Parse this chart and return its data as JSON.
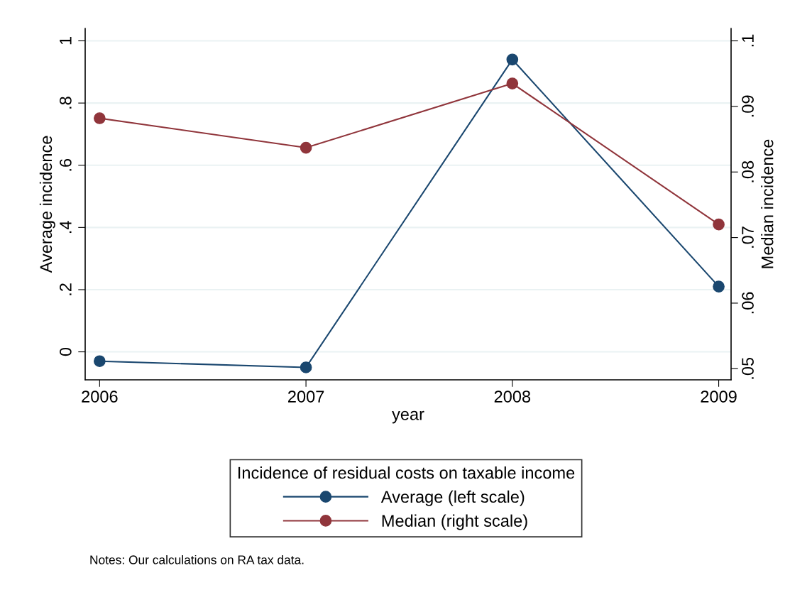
{
  "chart_data": {
    "type": "line",
    "x": [
      2006,
      2007,
      2008,
      2009
    ],
    "xlabel": "year",
    "ylabel": "Average incidence",
    "y2label": "Median incidence",
    "legend_title": "Incidence of residual costs on taxable income",
    "series": [
      {
        "name": "Average (left scale)",
        "color": "#1a476f",
        "values": [
          -0.03,
          -0.05,
          0.94,
          0.21
        ]
      },
      {
        "name": "Median (right scale)",
        "color": "#90353b",
        "axis": "y2",
        "values": [
          0.0882,
          0.0837,
          0.0935,
          0.072
        ]
      }
    ],
    "xlim": [
      2005.93,
      2009.06
    ],
    "xticks": [
      2006,
      2007,
      2008,
      2009
    ],
    "ylim": [
      -0.09,
      1.04
    ],
    "yticks": [
      {
        "value": 0,
        "label": "0"
      },
      {
        "value": 0.2,
        "label": ".2"
      },
      {
        "value": 0.4,
        "label": ".4"
      },
      {
        "value": 0.6,
        "label": ".6"
      },
      {
        "value": 0.8,
        "label": ".8"
      },
      {
        "value": 1,
        "label": "1"
      }
    ],
    "y2lim": [
      0.0483,
      0.1019
    ],
    "y2ticks": [
      {
        "value": 0.05,
        "label": ".05"
      },
      {
        "value": 0.06,
        "label": ".06"
      },
      {
        "value": 0.07,
        "label": ".07"
      },
      {
        "value": 0.08,
        "label": ".08"
      },
      {
        "value": 0.09,
        "label": ".09"
      },
      {
        "value": 0.1,
        "label": ".1"
      }
    ],
    "grid": "y",
    "legend": "bottom",
    "marker": "circle",
    "line_style": "solid",
    "annotations": [
      "Notes: Our calculations on RA tax data."
    ]
  }
}
